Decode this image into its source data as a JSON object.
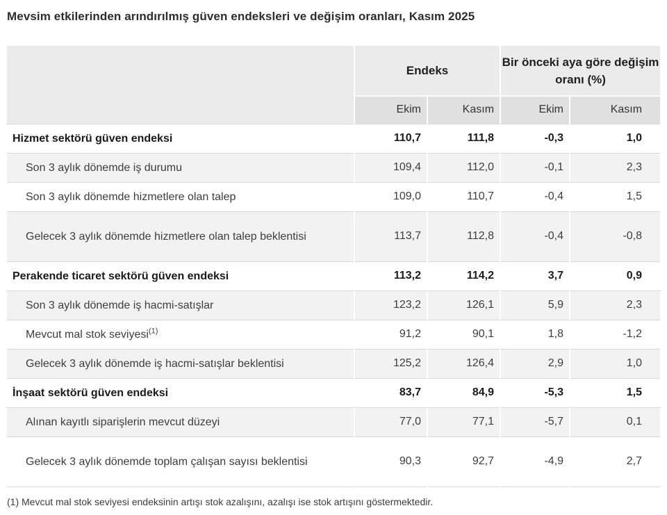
{
  "title": "Mevsim etkilerinden arındırılmış güven endeksleri ve değişim oranları, Kasım 2025",
  "table": {
    "col_groups": [
      {
        "label": "Endeks"
      },
      {
        "label": "Bir önceki aya göre değişim oranı (%)"
      }
    ],
    "sub_headers": [
      "Ekim",
      "Kasım",
      "Ekim",
      "Kasım"
    ],
    "rows": [
      {
        "label": "Hizmet sektörü güven endeksi",
        "bold": true,
        "two_line": false,
        "values": [
          "110,7",
          "111,8",
          "-0,3",
          "1,0"
        ]
      },
      {
        "label": "Son 3 aylık dönemde iş durumu",
        "bold": false,
        "two_line": false,
        "values": [
          "109,4",
          "112,0",
          "-0,1",
          "2,3"
        ]
      },
      {
        "label": "Son 3 aylık dönemde hizmetlere olan talep",
        "bold": false,
        "two_line": false,
        "values": [
          "109,0",
          "110,7",
          "-0,4",
          "1,5"
        ]
      },
      {
        "label": "Gelecek 3 aylık dönemde hizmetlere olan talep beklentisi",
        "bold": false,
        "two_line": true,
        "values": [
          "113,7",
          "112,8",
          "-0,4",
          "-0,8"
        ]
      },
      {
        "label": "Perakende ticaret sektörü güven endeksi",
        "bold": true,
        "two_line": false,
        "values": [
          "113,2",
          "114,2",
          "3,7",
          "0,9"
        ]
      },
      {
        "label": "Son 3 aylık dönemde iş hacmi-satışlar",
        "bold": false,
        "two_line": false,
        "values": [
          "123,2",
          "126,1",
          "5,9",
          "2,3"
        ]
      },
      {
        "label": "Mevcut mal stok seviyesi",
        "sup": "(1)",
        "bold": false,
        "two_line": false,
        "values": [
          "91,2",
          "90,1",
          "1,8",
          "-1,2"
        ]
      },
      {
        "label": "Gelecek 3 aylık dönemde iş hacmi-satışlar beklentisi",
        "bold": false,
        "two_line": false,
        "values": [
          "125,2",
          "126,4",
          "2,9",
          "1,0"
        ]
      },
      {
        "label": "İnşaat sektörü güven endeksi",
        "bold": true,
        "two_line": false,
        "values": [
          "83,7",
          "84,9",
          "-5,3",
          "1,5"
        ]
      },
      {
        "label": "Alınan kayıtlı siparişlerin mevcut düzeyi",
        "bold": false,
        "two_line": false,
        "values": [
          "77,0",
          "77,1",
          "-5,7",
          "0,1"
        ]
      },
      {
        "label": "Gelecek 3 aylık dönemde toplam çalışan sayısı beklentisi",
        "bold": false,
        "two_line": true,
        "values": [
          "90,3",
          "92,7",
          "-4,9",
          "2,7"
        ]
      }
    ]
  },
  "footnote": "(1) Mevcut mal stok seviyesi endeksinin artışı stok azalışını, azalışı ise stok artışını göstermektedir.",
  "colors": {
    "header_bg": "#ebebeb",
    "subheader_bg": "#e0e0e0",
    "stripe_bg": "#f2f2f2",
    "row_border": "#d8d8d8",
    "bottom_bar": "#212b3b",
    "text": "#3d3d3d",
    "text_strong": "#1a1a1a"
  }
}
